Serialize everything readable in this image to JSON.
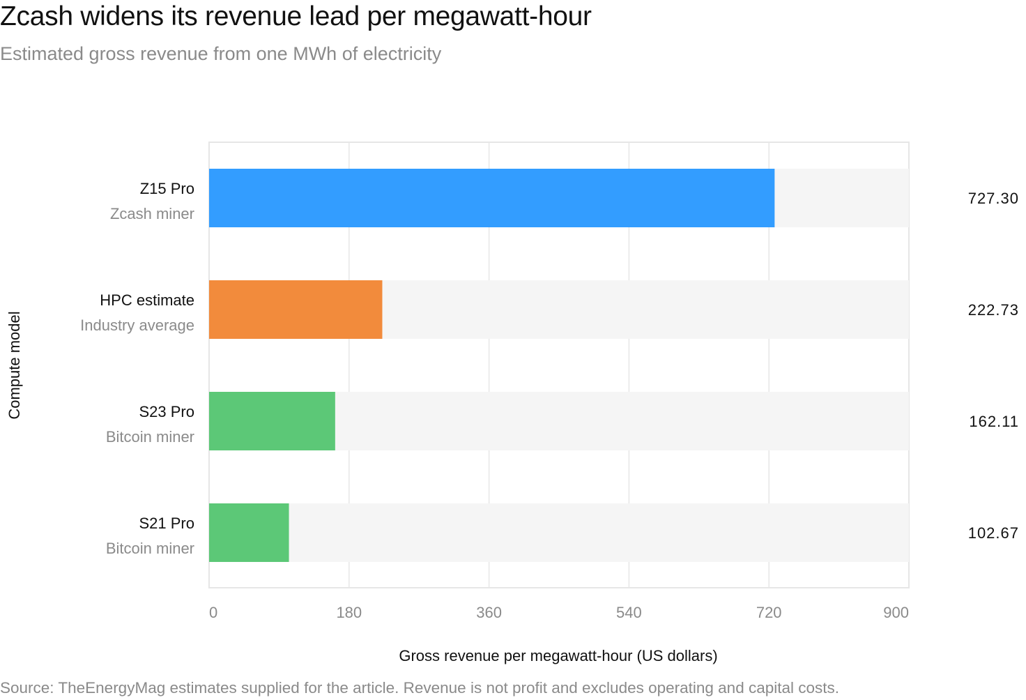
{
  "header": {
    "title": "Zcash widens its revenue lead per megawatt-hour",
    "subtitle": "Estimated gross revenue from one MWh of electricity"
  },
  "footer": {
    "source": "Source: TheEnergyMag estimates supplied for the article. Revenue is not profit and excludes operating and capital costs."
  },
  "chart_data": {
    "type": "bar",
    "orientation": "horizontal",
    "title": "Zcash widens its revenue lead per megawatt-hour",
    "subtitle": "Estimated gross revenue from one MWh of electricity",
    "xlabel": "Gross revenue per megawatt-hour (US dollars)",
    "ylabel": "Compute model",
    "xlim": [
      0,
      900
    ],
    "xticks": [
      "0",
      "180",
      "360",
      "540",
      "720",
      "900"
    ],
    "grid": true,
    "categories": [
      {
        "name": "Z15 Pro",
        "sub": "Zcash miner",
        "value": 727.3,
        "label": "727.30",
        "color": "#339dff"
      },
      {
        "name": "HPC estimate",
        "sub": "Industry average",
        "value": 222.73,
        "label": "222.73",
        "color": "#f28b3c"
      },
      {
        "name": "S23 Pro",
        "sub": "Bitcoin miner",
        "value": 162.11,
        "label": "162.11",
        "color": "#5cc877"
      },
      {
        "name": "S21 Pro",
        "sub": "Bitcoin miner",
        "value": 102.67,
        "label": "102.67",
        "color": "#5cc877"
      }
    ],
    "colors": {
      "track": "#f5f5f5",
      "grid": "#e6e6e6"
    }
  }
}
